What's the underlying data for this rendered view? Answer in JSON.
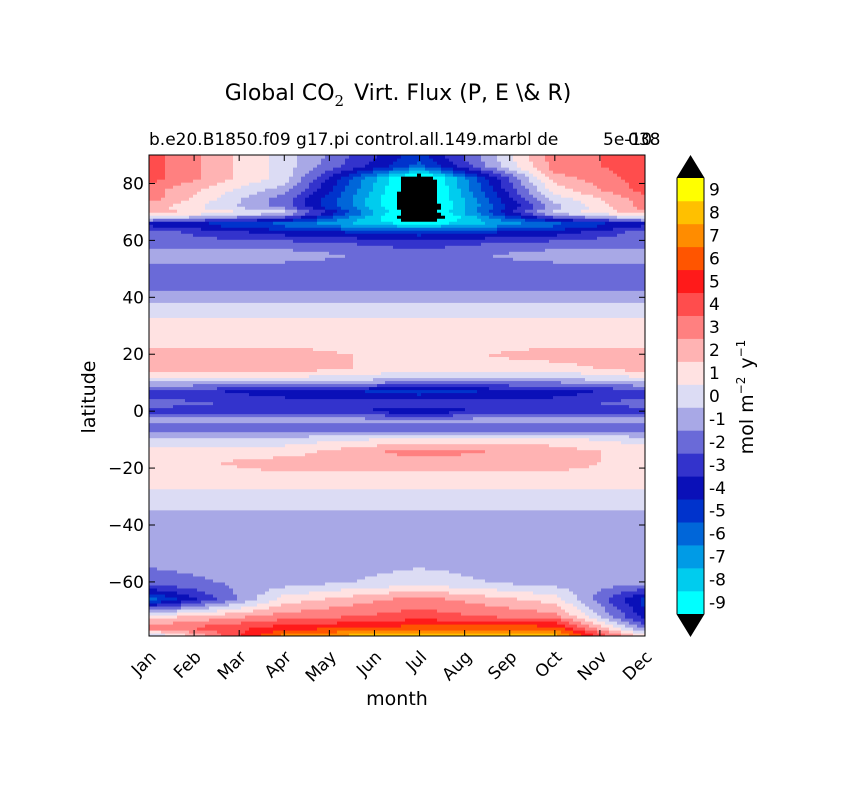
{
  "chart_data": {
    "type": "heatmap",
    "subtype": "filled-contour",
    "title_prefix": "Global CO",
    "title_subscript": "2",
    "title_suffix": "Virt. Flux (P, E \\& R)",
    "subtitle": "b.e20.B1850.f09 g17.pi control.all.149.marbl de",
    "scale_label": "5e-10",
    "scale_suffix": "038",
    "xlabel": "month",
    "ylabel": "latitude",
    "x_ticks": [
      "Jan",
      "Feb",
      "Mar",
      "Apr",
      "May",
      "Jun",
      "Jul",
      "Aug",
      "Sep",
      "Oct",
      "Nov",
      "Dec"
    ],
    "xlim": [
      0,
      11
    ],
    "ylim": [
      -79,
      90
    ],
    "y_ticks": [
      -60,
      -40,
      -20,
      0,
      20,
      40,
      60,
      80
    ],
    "y_tick_labels": [
      "−60",
      "−40",
      "−20",
      "0",
      "20",
      "40",
      "60",
      "80"
    ],
    "colorbar": {
      "label_main": "mol m",
      "label_exp1": "−2",
      "label_y": "y",
      "label_exp2": "−1",
      "tick_labels": [
        "-9",
        "-8",
        "-7",
        "-6",
        "-5",
        "-4",
        "-3",
        "-2",
        "-1",
        "0",
        "1",
        "2",
        "3",
        "4",
        "5",
        "6",
        "7",
        "8",
        "9"
      ],
      "colors": [
        "#00ffff",
        "#00ccee",
        "#009be6",
        "#0066d9",
        "#0033cc",
        "#0a10b8",
        "#3333cc",
        "#6a6ad8",
        "#a8a8e6",
        "#dcdcf4",
        "#ffe2e2",
        "#ffb3b3",
        "#ff8080",
        "#ff4d4d",
        "#ff1a1a",
        "#ff5500",
        "#ff8c00",
        "#ffc000",
        "#ffff00"
      ],
      "under_color": "#000000",
      "over_color": "#000000"
    },
    "field": {
      "latitudes": [
        -79,
        -76,
        -72,
        -66,
        -60,
        -50,
        -40,
        -30,
        -24,
        -18,
        -14,
        -10,
        -6,
        -3,
        0,
        3,
        7,
        11,
        15,
        20,
        25,
        30,
        36,
        40,
        45,
        50,
        55,
        59,
        63,
        66,
        68,
        70,
        72,
        75,
        78,
        82,
        86,
        90
      ],
      "profiles": {
        "Jan": [
          -1,
          3,
          1,
          -6,
          -2,
          -1,
          -1,
          0,
          1,
          1,
          1,
          0,
          -2,
          -1,
          -3,
          -2,
          -3,
          0,
          2,
          2,
          1,
          1,
          0,
          -1,
          -2,
          -2,
          -1,
          -2,
          -2,
          -4,
          0,
          2,
          2,
          3,
          3,
          4,
          4,
          4
        ],
        "Apr": [
          7,
          5,
          3,
          1,
          -1,
          -1,
          -1,
          0,
          1,
          2,
          1,
          0,
          -2,
          -1,
          -3,
          -3,
          -4,
          0,
          2,
          2,
          1,
          1,
          0,
          -1,
          -2,
          -2,
          -1,
          -2,
          -4,
          -6,
          -3,
          0,
          -2,
          -2,
          -1,
          0,
          0,
          0
        ],
        "Jul": [
          9,
          6,
          4,
          3,
          0,
          -1,
          -1,
          0,
          1,
          2,
          3,
          1,
          -2,
          -1,
          -4,
          -3,
          -5,
          -1,
          1,
          1,
          1,
          1,
          0,
          -1,
          -2,
          -2,
          -2,
          -3,
          -5,
          -9,
          -11,
          -11,
          -11,
          -11,
          -11,
          -11,
          -6,
          -5
        ],
        "Oct": [
          8,
          6,
          3,
          1,
          -1,
          -1,
          -1,
          0,
          1,
          2,
          2,
          1,
          -2,
          -1,
          -3,
          -3,
          -4,
          -1,
          1,
          2,
          1,
          1,
          0,
          -1,
          -2,
          -2,
          -1,
          -2,
          -4,
          -6,
          -3,
          0,
          -1,
          0,
          1,
          2,
          3,
          3
        ],
        "Dec": [
          1,
          -2,
          -4,
          -5,
          -1,
          -1,
          -1,
          0,
          1,
          1,
          1,
          0,
          -2,
          -1,
          -3,
          -2,
          -3,
          0,
          2,
          2,
          1,
          1,
          0,
          -1,
          -2,
          -2,
          -1,
          -2,
          -2,
          -4,
          0,
          2,
          3,
          3,
          4,
          4,
          4,
          4
        ]
      }
    }
  }
}
